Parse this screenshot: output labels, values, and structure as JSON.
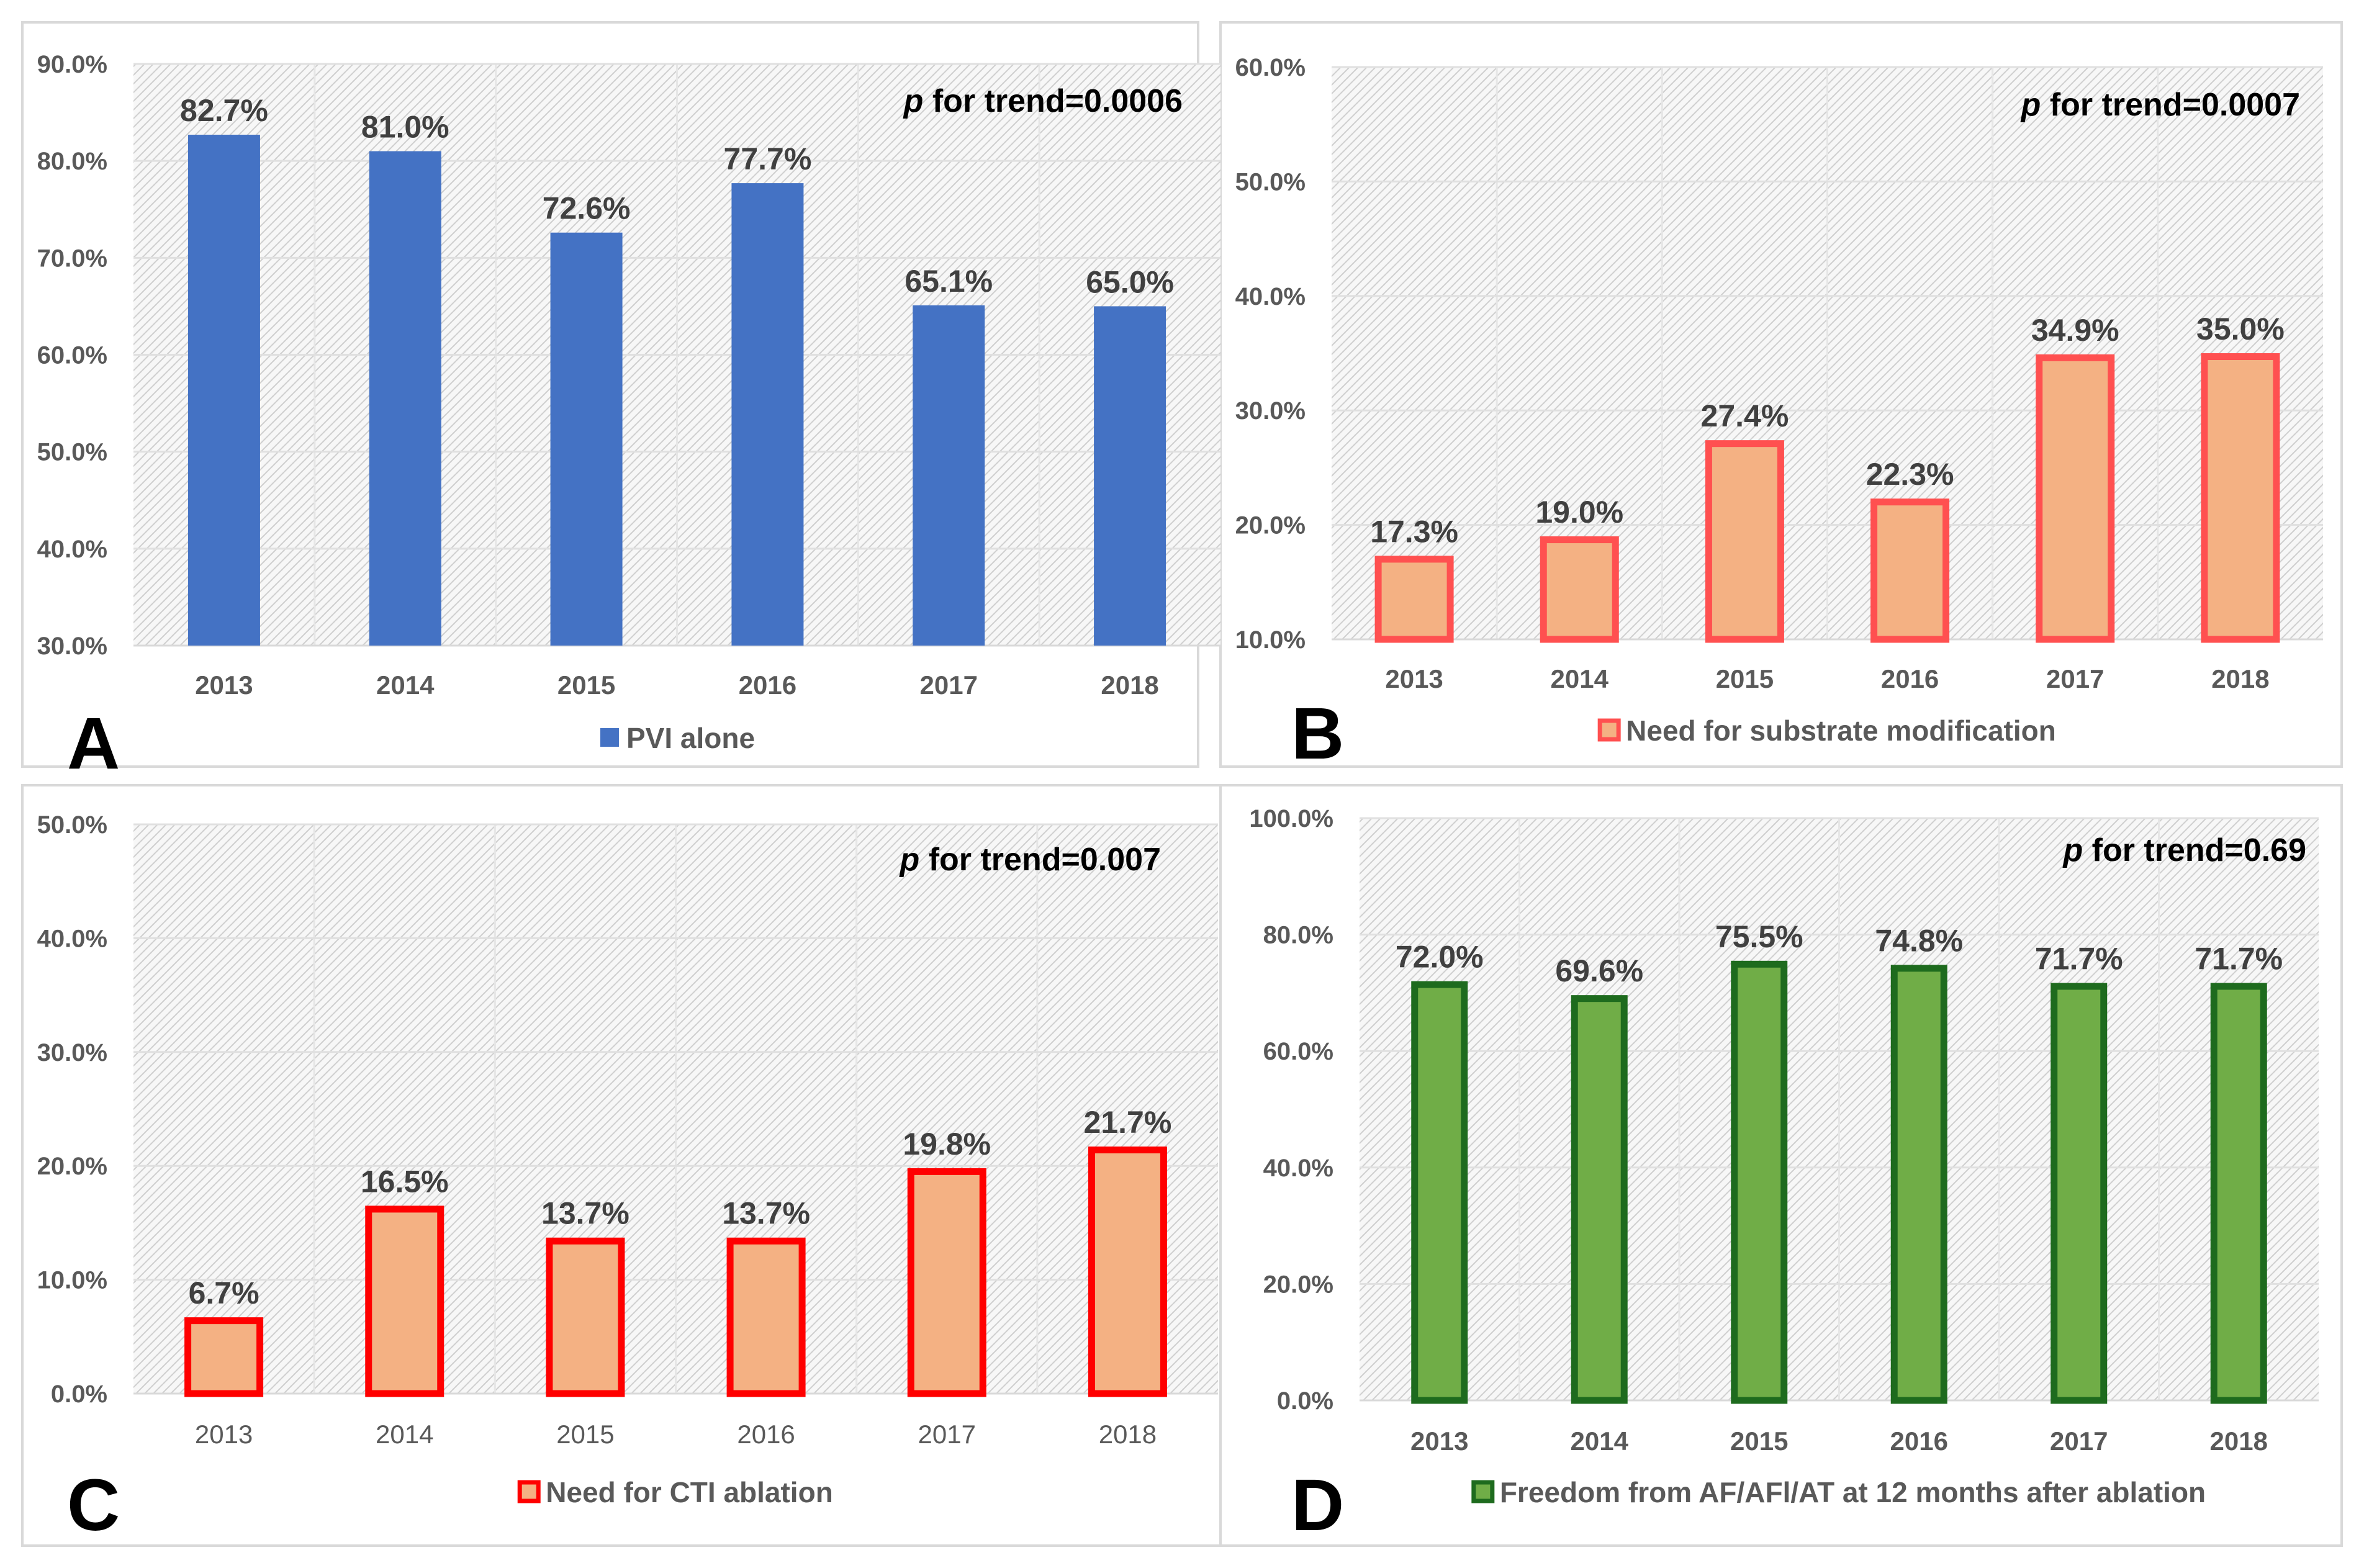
{
  "chart_data": [
    {
      "type": "bar",
      "panel_letter": "A",
      "categories": [
        "2013",
        "2014",
        "2015",
        "2016",
        "2017",
        "2018"
      ],
      "values": [
        82.7,
        81.0,
        72.6,
        77.7,
        65.1,
        65.0
      ],
      "value_labels": [
        "82.7%",
        "81.0%",
        "72.6%",
        "77.7%",
        "65.1%",
        "65.0%"
      ],
      "ylim": [
        30,
        90
      ],
      "y_ticks": [
        {
          "value": 30,
          "label": "30.0%"
        },
        {
          "value": 40,
          "label": "40.0%"
        },
        {
          "value": 50,
          "label": "50.0%"
        },
        {
          "value": 60,
          "label": "60.0%"
        },
        {
          "value": 70,
          "label": "70.0%"
        },
        {
          "value": 80,
          "label": "80.0%"
        },
        {
          "value": 90,
          "label": "90.0%"
        }
      ],
      "annotation": {
        "p": "p",
        "text": " for trend=0.0006"
      },
      "legend": "PVI alone",
      "legend_position": "bottom",
      "style": {
        "fill": "#4472C4",
        "stroke": "#4472C4",
        "bold_categories": true
      }
    },
    {
      "type": "bar",
      "panel_letter": "B",
      "categories": [
        "2013",
        "2014",
        "2015",
        "2016",
        "2017",
        "2018"
      ],
      "values": [
        17.3,
        19.0,
        27.4,
        22.3,
        34.9,
        35.0
      ],
      "value_labels": [
        "17.3%",
        "19.0%",
        "27.4%",
        "22.3%",
        "34.9%",
        "35.0%"
      ],
      "ylim": [
        10,
        60
      ],
      "y_ticks": [
        {
          "value": 10,
          "label": "10.0%"
        },
        {
          "value": 20,
          "label": "20.0%"
        },
        {
          "value": 30,
          "label": "30.0%"
        },
        {
          "value": 40,
          "label": "40.0%"
        },
        {
          "value": 50,
          "label": "50.0%"
        },
        {
          "value": 60,
          "label": "60.0%"
        }
      ],
      "annotation": {
        "p": "p",
        "text": " for trend=0.0007"
      },
      "legend": "Need for substrate modification",
      "legend_position": "bottom",
      "style": {
        "fill": "#F4B183",
        "stroke": "#FF5050",
        "bold_categories": true
      }
    },
    {
      "type": "bar",
      "panel_letter": "C",
      "categories": [
        "2013",
        "2014",
        "2015",
        "2016",
        "2017",
        "2018"
      ],
      "values": [
        6.7,
        16.5,
        13.7,
        13.7,
        19.8,
        21.7
      ],
      "value_labels": [
        "6.7%",
        "16.5%",
        "13.7%",
        "13.7%",
        "19.8%",
        "21.7%"
      ],
      "ylim": [
        0,
        50
      ],
      "y_ticks": [
        {
          "value": 0,
          "label": "0.0%"
        },
        {
          "value": 10,
          "label": "10.0%"
        },
        {
          "value": 20,
          "label": "20.0%"
        },
        {
          "value": 30,
          "label": "30.0%"
        },
        {
          "value": 40,
          "label": "40.0%"
        },
        {
          "value": 50,
          "label": "50.0%"
        }
      ],
      "annotation": {
        "p": "p",
        "text": " for trend=0.007"
      },
      "legend": "Need for CTI ablation",
      "legend_position": "bottom",
      "style": {
        "fill": "#F4B183",
        "stroke": "#FF0000",
        "bold_categories": false
      }
    },
    {
      "type": "bar",
      "panel_letter": "D",
      "categories": [
        "2013",
        "2014",
        "2015",
        "2016",
        "2017",
        "2018"
      ],
      "values": [
        72.0,
        69.6,
        75.5,
        74.8,
        71.7,
        71.7
      ],
      "value_labels": [
        "72.0%",
        "69.6%",
        "75.5%",
        "74.8%",
        "71.7%",
        "71.7%"
      ],
      "ylim": [
        0,
        100
      ],
      "y_ticks": [
        {
          "value": 0,
          "label": "0.0%"
        },
        {
          "value": 20,
          "label": "20.0%"
        },
        {
          "value": 40,
          "label": "40.0%"
        },
        {
          "value": 60,
          "label": "60.0%"
        },
        {
          "value": 80,
          "label": "80.0%"
        },
        {
          "value": 100,
          "label": "100.0%"
        }
      ],
      "annotation": {
        "p": "p",
        "text": " for trend=0.69"
      },
      "legend": "Freedom from AF/AFl/AT at 12 months after ablation",
      "legend_position": "bottom",
      "style": {
        "fill": "#70AD47",
        "stroke": "#1E6B1E",
        "bold_categories": true
      }
    }
  ]
}
